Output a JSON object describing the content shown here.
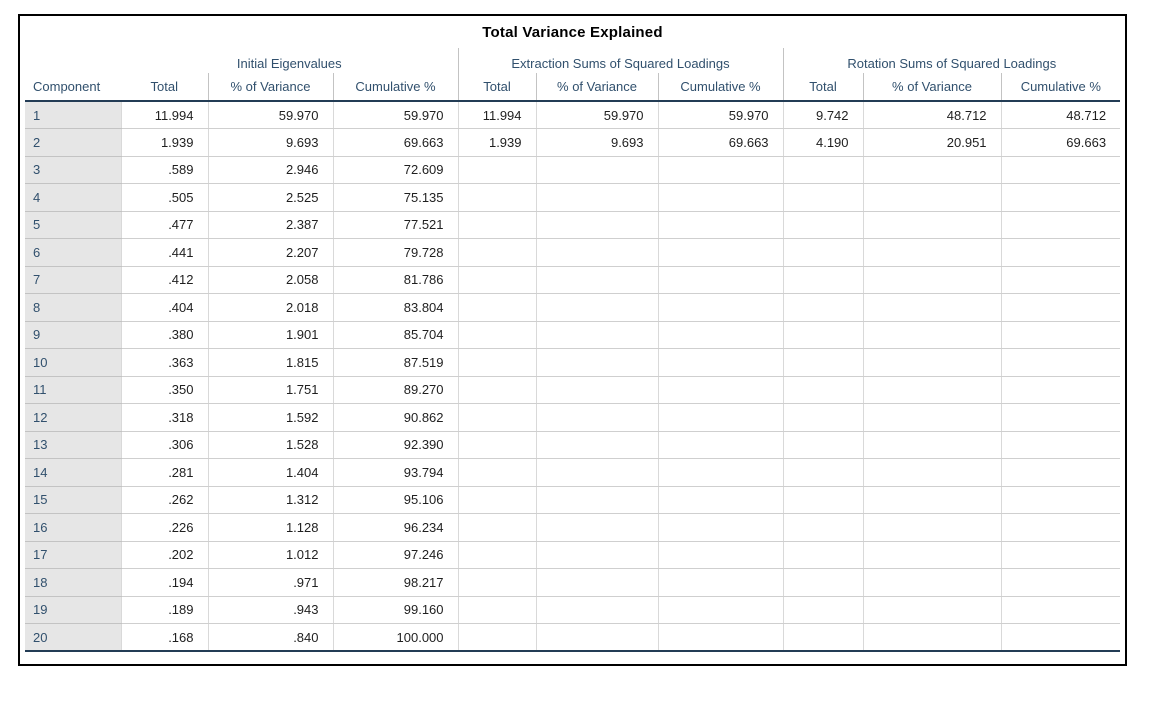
{
  "chart_data": {
    "type": "table",
    "title": "Total Variance Explained",
    "row_header_label": "Component",
    "column_groups": [
      "Initial Eigenvalues",
      "Extraction Sums of Squared Loadings",
      "Rotation Sums of Squared Loadings"
    ],
    "sub_columns": [
      "Total",
      "% of Variance",
      "Cumulative %"
    ],
    "rows": [
      {
        "component": "1",
        "values": [
          "11.994",
          "59.970",
          "59.970",
          "11.994",
          "59.970",
          "59.970",
          "9.742",
          "48.712",
          "48.712"
        ]
      },
      {
        "component": "2",
        "values": [
          "1.939",
          "9.693",
          "69.663",
          "1.939",
          "9.693",
          "69.663",
          "4.190",
          "20.951",
          "69.663"
        ]
      },
      {
        "component": "3",
        "values": [
          ".589",
          "2.946",
          "72.609",
          "",
          "",
          "",
          "",
          "",
          ""
        ]
      },
      {
        "component": "4",
        "values": [
          ".505",
          "2.525",
          "75.135",
          "",
          "",
          "",
          "",
          "",
          ""
        ]
      },
      {
        "component": "5",
        "values": [
          ".477",
          "2.387",
          "77.521",
          "",
          "",
          "",
          "",
          "",
          ""
        ]
      },
      {
        "component": "6",
        "values": [
          ".441",
          "2.207",
          "79.728",
          "",
          "",
          "",
          "",
          "",
          ""
        ]
      },
      {
        "component": "7",
        "values": [
          ".412",
          "2.058",
          "81.786",
          "",
          "",
          "",
          "",
          "",
          ""
        ]
      },
      {
        "component": "8",
        "values": [
          ".404",
          "2.018",
          "83.804",
          "",
          "",
          "",
          "",
          "",
          ""
        ]
      },
      {
        "component": "9",
        "values": [
          ".380",
          "1.901",
          "85.704",
          "",
          "",
          "",
          "",
          "",
          ""
        ]
      },
      {
        "component": "10",
        "values": [
          ".363",
          "1.815",
          "87.519",
          "",
          "",
          "",
          "",
          "",
          ""
        ]
      },
      {
        "component": "11",
        "values": [
          ".350",
          "1.751",
          "89.270",
          "",
          "",
          "",
          "",
          "",
          ""
        ]
      },
      {
        "component": "12",
        "values": [
          ".318",
          "1.592",
          "90.862",
          "",
          "",
          "",
          "",
          "",
          ""
        ]
      },
      {
        "component": "13",
        "values": [
          ".306",
          "1.528",
          "92.390",
          "",
          "",
          "",
          "",
          "",
          ""
        ]
      },
      {
        "component": "14",
        "values": [
          ".281",
          "1.404",
          "93.794",
          "",
          "",
          "",
          "",
          "",
          ""
        ]
      },
      {
        "component": "15",
        "values": [
          ".262",
          "1.312",
          "95.106",
          "",
          "",
          "",
          "",
          "",
          ""
        ]
      },
      {
        "component": "16",
        "values": [
          ".226",
          "1.128",
          "96.234",
          "",
          "",
          "",
          "",
          "",
          ""
        ]
      },
      {
        "component": "17",
        "values": [
          ".202",
          "1.012",
          "97.246",
          "",
          "",
          "",
          "",
          "",
          ""
        ]
      },
      {
        "component": "18",
        "values": [
          ".194",
          ".971",
          "98.217",
          "",
          "",
          "",
          "",
          "",
          ""
        ]
      },
      {
        "component": "19",
        "values": [
          ".189",
          ".943",
          "99.160",
          "",
          "",
          "",
          "",
          "",
          ""
        ]
      },
      {
        "component": "20",
        "values": [
          ".168",
          ".840",
          "100.000",
          "",
          "",
          "",
          "",
          "",
          ""
        ]
      }
    ]
  },
  "colors": {
    "header_text": "#31506d",
    "data_text": "#1f1f1f",
    "row_stub_background": "#e6e6e6",
    "grid_line": "#cfcfcf",
    "heavy_rule": "#233c55",
    "frame_border": "#000000"
  }
}
